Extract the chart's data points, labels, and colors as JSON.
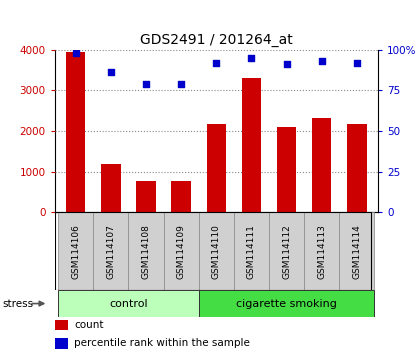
{
  "title": "GDS2491 / 201264_at",
  "samples": [
    "GSM114106",
    "GSM114107",
    "GSM114108",
    "GSM114109",
    "GSM114110",
    "GSM114111",
    "GSM114112",
    "GSM114113",
    "GSM114114"
  ],
  "counts": [
    3950,
    1180,
    770,
    770,
    2170,
    3300,
    2100,
    2330,
    2170
  ],
  "percentiles": [
    98,
    86,
    79,
    79,
    92,
    95,
    91,
    93,
    92
  ],
  "groups": [
    {
      "label": "control",
      "start": 0,
      "end": 4,
      "color": "#bbffbb"
    },
    {
      "label": "cigarette smoking",
      "start": 4,
      "end": 9,
      "color": "#44dd44"
    }
  ],
  "bar_color": "#cc0000",
  "dot_color": "#0000cc",
  "ylim_left": [
    0,
    4000
  ],
  "ylim_right": [
    0,
    100
  ],
  "yticks_left": [
    0,
    1000,
    2000,
    3000,
    4000
  ],
  "ytick_labels_left": [
    "0",
    "1000",
    "2000",
    "3000",
    "4000"
  ],
  "yticks_right": [
    0,
    25,
    50,
    75,
    100
  ],
  "ytick_labels_right": [
    "0",
    "25",
    "50",
    "75",
    "100%"
  ],
  "grid_color": "#888888",
  "bg_color": "#ffffff",
  "tick_box_color": "#d0d0d0",
  "tick_box_edge": "#888888",
  "stress_label": "stress",
  "legend_count": "count",
  "legend_pct": "percentile rank within the sample",
  "bar_width": 0.55
}
